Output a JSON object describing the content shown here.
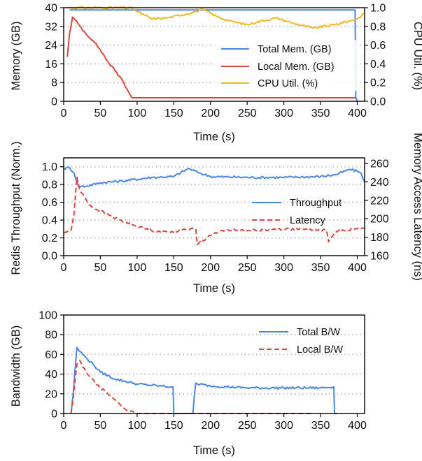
{
  "chart_data": [
    {
      "type": "line",
      "xlabel": "Time (s)",
      "ylabel": "Memory (GB)",
      "ylabel_right": "CPU Util. (%)",
      "xlim": [
        0,
        410
      ],
      "ylim": [
        0,
        40
      ],
      "ylim_right": [
        0,
        1.0
      ],
      "xticks": [
        "0",
        "50",
        "100",
        "150",
        "200",
        "250",
        "300",
        "350",
        "400"
      ],
      "yticks": [
        "0",
        "8",
        "16",
        "24",
        "32",
        "40"
      ],
      "yticks_right": [
        "0.0",
        "0.2",
        "0.4",
        "0.6",
        "0.8",
        "1.0"
      ],
      "grid": "horizontal dotted",
      "legend_position": "bottom-right",
      "series": [
        {
          "name": "Total Mem. (GB)",
          "color": "#4a86e8",
          "axis": "left",
          "style": "solid",
          "x": [
            8,
            11,
            30,
            100,
            200,
            300,
            397,
            398,
            400
          ],
          "y": [
            39,
            39,
            39,
            39,
            39,
            39,
            39,
            1.5,
            0
          ]
        },
        {
          "name": "Local Mem. (GB)",
          "color": "#d9473f",
          "axis": "left",
          "style": "solid",
          "x": [
            5,
            8,
            12,
            20,
            30,
            40,
            50,
            60,
            70,
            80,
            90,
            93,
            100,
            200,
            300,
            396,
            398
          ],
          "y": [
            19,
            29,
            36,
            33,
            29,
            26,
            22,
            17,
            13,
            9,
            3,
            1.5,
            1.5,
            1.5,
            1.5,
            1.5,
            1.5
          ]
        },
        {
          "name": "CPU Util. (%)",
          "color": "#f1b827",
          "axis": "right",
          "style": "solid",
          "x": [
            5,
            50,
            92,
            100,
            110,
            120,
            140,
            160,
            190,
            210,
            230,
            250,
            270,
            290,
            310,
            340,
            370,
            400,
            410
          ],
          "y": [
            1.0,
            1.0,
            1.0,
            0.96,
            0.92,
            0.88,
            0.89,
            0.92,
            0.98,
            0.9,
            0.85,
            0.82,
            0.86,
            0.89,
            0.84,
            0.78,
            0.82,
            0.88,
            0.94
          ]
        }
      ]
    },
    {
      "type": "line",
      "xlabel": "Time (s)",
      "ylabel": "Redis Throughput (Norm.)",
      "ylabel_right": "Memory Access Latency (ns)",
      "xlim": [
        0,
        410
      ],
      "ylim": [
        0,
        1.1
      ],
      "ylim_right": [
        160,
        266
      ],
      "xticks": [
        "0",
        "50",
        "100",
        "150",
        "200",
        "250",
        "300",
        "350",
        "400"
      ],
      "yticks": [
        "0.0",
        "0.2",
        "0.4",
        "0.6",
        "0.8",
        "1.0"
      ],
      "yticks_right": [
        "160",
        "180",
        "200",
        "220",
        "240",
        "260"
      ],
      "grid": "horizontal dotted",
      "legend_position": "right",
      "series": [
        {
          "name": "Throughput",
          "color": "#4a86e8",
          "axis": "left",
          "style": "solid",
          "x": [
            0,
            8,
            14,
            20,
            30,
            50,
            80,
            120,
            150,
            170,
            185,
            200,
            250,
            300,
            350,
            370,
            390,
            400,
            405,
            410
          ],
          "y": [
            0.98,
            0.99,
            0.93,
            0.78,
            0.78,
            0.82,
            0.84,
            0.88,
            0.89,
            0.98,
            0.93,
            0.89,
            0.88,
            0.88,
            0.89,
            0.91,
            0.97,
            0.95,
            0.93,
            0.83
          ]
        },
        {
          "name": "Latency",
          "color": "#d9473f",
          "axis": "right",
          "style": "dashed",
          "x": [
            0,
            5,
            10,
            14,
            18,
            22,
            28,
            35,
            45,
            60,
            80,
            100,
            120,
            140,
            160,
            175,
            180,
            182,
            200,
            220,
            250,
            300,
            340,
            358,
            361,
            365,
            370,
            380,
            400,
            410
          ],
          "y": [
            185,
            186,
            187,
            205,
            245,
            230,
            225,
            215,
            210,
            205,
            197,
            192,
            187,
            186,
            187,
            190,
            189,
            172,
            182,
            188,
            187,
            189,
            188,
            188,
            175,
            180,
            186,
            188,
            189,
            190
          ]
        }
      ]
    },
    {
      "type": "line",
      "xlabel": "Time (s)",
      "ylabel": "Bandwidth (GB)",
      "xlim": [
        0,
        410
      ],
      "ylim": [
        0,
        100
      ],
      "xticks": [
        "0",
        "50",
        "100",
        "150",
        "200",
        "250",
        "300",
        "350",
        "400"
      ],
      "yticks": [
        "0",
        "20",
        "40",
        "60",
        "80",
        "100"
      ],
      "grid": "horizontal dotted",
      "legend_position": "top-right",
      "series": [
        {
          "name": "Total B/W",
          "color": "#4a86e8",
          "axis": "left",
          "style": "solid",
          "x": [
            10,
            13,
            15,
            18,
            22,
            30,
            40,
            50,
            70,
            100,
            130,
            148,
            149,
            150,
            176,
            178,
            180,
            182,
            200,
            250,
            300,
            350,
            367,
            368,
            369,
            372
          ],
          "y": [
            0,
            20,
            40,
            67,
            63,
            57,
            50,
            42,
            35,
            30,
            28,
            27,
            27,
            0,
            0,
            18,
            31,
            30,
            28,
            26,
            26,
            26,
            27,
            27,
            0,
            0
          ]
        },
        {
          "name": "Local B/W",
          "color": "#d9473f",
          "axis": "left",
          "style": "dashed",
          "x": [
            10,
            13,
            15,
            18,
            22,
            26,
            35,
            45,
            60,
            70,
            80,
            90,
            100,
            120,
            150,
            200,
            250,
            300,
            340
          ],
          "y": [
            0,
            15,
            30,
            50,
            54,
            47,
            38,
            29,
            20,
            14,
            7,
            2,
            0,
            0,
            0,
            0,
            0,
            0,
            0
          ]
        }
      ]
    }
  ]
}
